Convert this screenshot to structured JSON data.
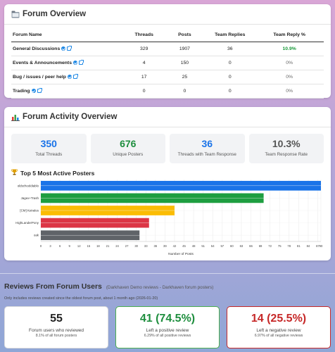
{
  "overview": {
    "title": "Forum Overview",
    "headers": [
      "Forum Name",
      "Threads",
      "Posts",
      "Team Replies",
      "Team Reply %"
    ],
    "rows": [
      {
        "name": "General Discussions",
        "threads": "329",
        "posts": "1907",
        "replies": "36",
        "pct": "10.9%",
        "pct_highlight": true
      },
      {
        "name": "Events & Announcements",
        "threads": "4",
        "posts": "150",
        "replies": "0",
        "pct": "0%",
        "pct_highlight": false
      },
      {
        "name": "Bug / issues / peer help",
        "threads": "17",
        "posts": "25",
        "replies": "0",
        "pct": "0%",
        "pct_highlight": false
      },
      {
        "name": "Trading",
        "threads": "0",
        "posts": "0",
        "replies": "0",
        "pct": "0%",
        "pct_highlight": false
      }
    ]
  },
  "activity": {
    "title": "Forum Activity Overview",
    "stats": [
      {
        "value": "350",
        "label": "Total Threads",
        "color": "#1a73e8"
      },
      {
        "value": "676",
        "label": "Unique Posters",
        "color": "#1e8e3e"
      },
      {
        "value": "36",
        "label": "Threads with Team Response",
        "color": "#1a73e8"
      },
      {
        "value": "10.3%",
        "label": "Team Response Rate",
        "color": "#555555"
      }
    ],
    "top_title": "Top 5 Most Active Posters"
  },
  "chart_data": {
    "type": "bar",
    "orientation": "horizontal",
    "categories": [
      "oldschooldiablo",
      "Jagex+Trash",
      "[CM] Ketrales",
      "HighLanderPony",
      "oak"
    ],
    "values": [
      90,
      70,
      42,
      34,
      31
    ],
    "colors": [
      "#1a73e8",
      "#1e9e40",
      "#fbbc04",
      "#dc3545",
      "#5f6368"
    ],
    "xlabel": "Number of Posts",
    "ylabel": "",
    "xlim": [
      0,
      88
    ],
    "xticks": [
      0,
      3,
      6,
      9,
      12,
      15,
      18,
      21,
      24,
      27,
      30,
      33,
      36,
      39,
      42,
      45,
      48,
      51,
      54,
      57,
      60,
      63,
      66,
      69,
      72,
      75,
      78,
      81,
      84,
      87,
      90
    ],
    "grid": true
  },
  "reviews": {
    "title": "Reviews From Forum Users",
    "subtitle": "(Darkhaven Demo reviews - Darkhaven forum posters)",
    "note": "Only includes reviews created since the oldest forum post, about 1 month ago (2026-01-20)",
    "cards": [
      {
        "value": "55",
        "label": "Forum users who reviewed",
        "sub": "8.1% of all forum posters"
      },
      {
        "value": "41 (74.5%)",
        "label": "Left a positive review",
        "sub": "6.29% of all positive reviews"
      },
      {
        "value": "14 (25.5%)",
        "label": "Left a negative review",
        "sub": "6.97% of all negative reviews"
      }
    ]
  }
}
